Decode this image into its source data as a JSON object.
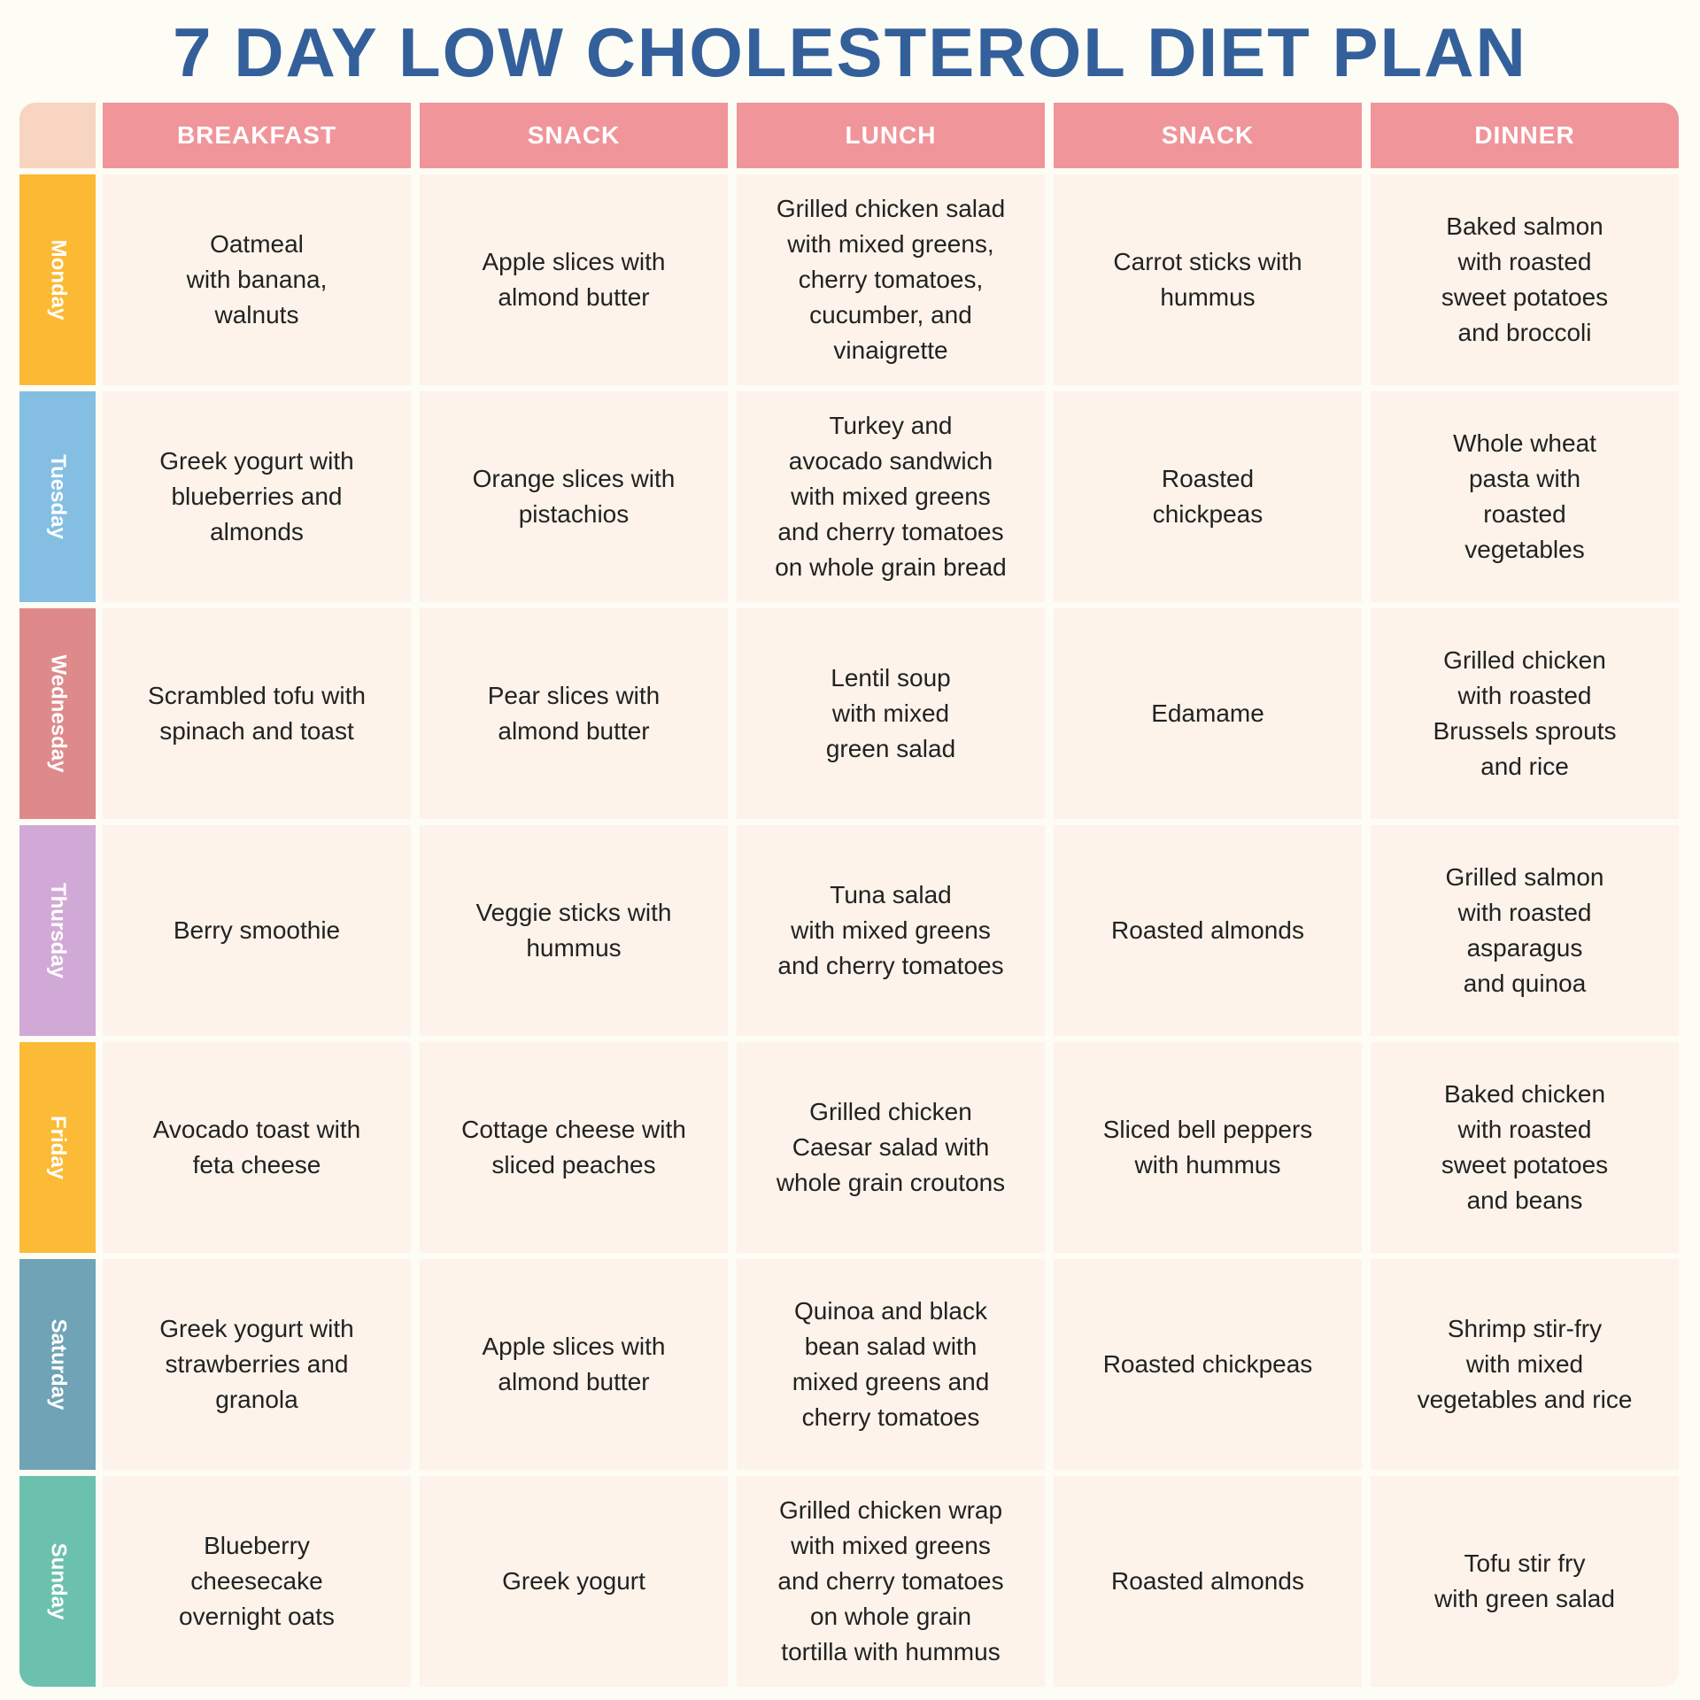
{
  "title": "7 DAY LOW CHOLESTEROL DIET PLAN",
  "table": {
    "columns": [
      "BREAKFAST",
      "SNACK",
      "LUNCH",
      "SNACK",
      "DINNER"
    ],
    "rows": [
      {
        "day": "Monday",
        "meals": [
          "Oatmeal\nwith banana,\nwalnuts",
          "Apple slices with\nalmond butter",
          "Grilled chicken salad\nwith mixed greens,\ncherry tomatoes,\ncucumber, and\nvinaigrette",
          "Carrot sticks with\nhummus",
          "Baked salmon\nwith roasted\nsweet potatoes\nand broccoli"
        ]
      },
      {
        "day": "Tuesday",
        "meals": [
          "Greek yogurt with\nblueberries and\nalmonds",
          "Orange slices with\npistachios",
          "Turkey and\navocado sandwich\nwith mixed greens\nand cherry tomatoes\non whole grain bread",
          "Roasted\nchickpeas",
          "Whole wheat\npasta with\nroasted\nvegetables"
        ]
      },
      {
        "day": "Wednesday",
        "meals": [
          "Scrambled tofu with\nspinach and toast",
          "Pear slices with\nalmond butter",
          "Lentil soup\nwith mixed\ngreen salad",
          "Edamame",
          "Grilled chicken\nwith roasted\nBrussels sprouts\nand rice"
        ]
      },
      {
        "day": "Thursday",
        "meals": [
          "Berry smoothie",
          "Veggie sticks with\nhummus",
          "Tuna salad\nwith mixed greens\nand cherry tomatoes",
          "Roasted almonds",
          "Grilled salmon\nwith roasted\nasparagus\nand quinoa"
        ]
      },
      {
        "day": "Friday",
        "meals": [
          "Avocado toast with\nfeta cheese",
          "Cottage cheese with\nsliced peaches",
          "Grilled chicken\nCaesar salad with\nwhole grain croutons",
          "Sliced bell peppers\nwith hummus",
          "Baked chicken\nwith roasted\nsweet potatoes\nand beans"
        ]
      },
      {
        "day": "Saturday",
        "meals": [
          "Greek yogurt with\nstrawberries and\ngranola",
          "Apple slices with\nalmond butter",
          "Quinoa and black\nbean salad with\nmixed greens and\ncherry tomatoes",
          "Roasted chickpeas",
          "Shrimp stir-fry\nwith mixed\nvegetables and rice"
        ]
      },
      {
        "day": "Sunday",
        "meals": [
          "Blueberry\ncheesecake\novernight oats",
          "Greek yogurt",
          "Grilled chicken wrap\nwith mixed greens\nand cherry tomatoes\non whole grain\ntortilla with hummus",
          "Roasted almonds",
          "Tofu stir fry\nwith green salad"
        ]
      }
    ]
  }
}
